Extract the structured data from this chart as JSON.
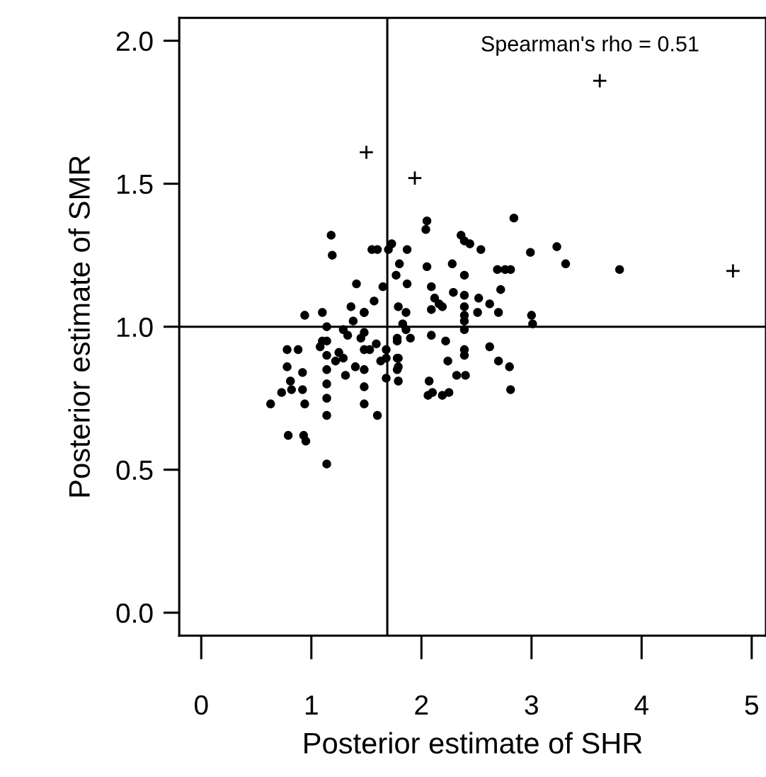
{
  "chart_data": {
    "type": "scatter",
    "xlabel": "Posterior estimate of SHR",
    "ylabel": "Posterior estimate of SMR",
    "xlim": [
      -0.2,
      5.13
    ],
    "ylim": [
      -0.08,
      2.08
    ],
    "xticks": [
      0,
      1,
      2,
      3,
      4,
      5
    ],
    "yticks": [
      {
        "value": 0,
        "label": "0.0"
      },
      {
        "value": 0.5,
        "label": "0.5"
      },
      {
        "value": 1,
        "label": "1.0"
      },
      {
        "value": 1.5,
        "label": "1.5"
      },
      {
        "value": 2,
        "label": "2.0"
      }
    ],
    "grid": false,
    "legend": false,
    "annotations": [
      "Spearman's rho = 0.51"
    ],
    "ref_lines": [
      {
        "axis": "x",
        "value": 1.69,
        "color": "#000000"
      },
      {
        "axis": "y",
        "value": 1.0,
        "color": "#000000"
      }
    ],
    "series": [
      {
        "color": "#000000",
        "marker": "circle",
        "x": [
          1.18,
          1.19,
          1.41,
          0.94,
          1.1,
          1.36,
          0.78,
          0.88,
          0.78,
          0.92,
          0.81,
          0.73,
          0.82,
          0.92,
          0.63,
          0.94,
          0.79,
          0.93,
          0.95,
          1.14,
          1.14,
          1.6,
          1.14,
          1.14,
          1.14,
          1.14,
          1.14,
          1.14,
          1.48,
          1.48,
          1.48,
          1.48,
          1.48,
          1.48,
          1.1,
          1.08,
          1.29,
          1.29,
          1.31,
          1.4,
          1.53,
          1.59,
          1.63,
          1.55,
          1.6,
          1.65,
          1.57,
          1.38,
          1.48,
          1.78,
          1.78,
          1.78,
          2.05,
          2.04,
          2.84,
          2.36,
          2.39,
          2.44,
          2.54,
          1.73,
          1.7,
          1.87,
          2.99,
          3.23,
          3.31,
          1.8,
          2.05,
          2.28,
          2.39,
          2.69,
          2.76,
          2.81,
          1.77,
          1.87,
          2.72,
          2.09,
          2.12,
          2.16,
          2.19,
          2.29,
          2.39,
          2.52,
          2.62,
          2.7,
          2.51,
          2.09,
          2.39,
          2.39,
          2.39,
          2.39,
          3.0,
          3.01,
          1.79,
          1.86,
          1.83,
          1.86,
          1.9,
          1.78,
          2.09,
          2.22,
          2.39,
          2.39,
          2.62,
          2.7,
          2.8,
          2.24,
          2.32,
          2.4,
          2.07,
          2.06,
          2.1,
          2.19,
          2.25,
          2.81,
          1.79,
          1.79,
          1.79,
          1.68,
          1.68,
          1.68,
          3.8,
          1.33,
          1.22,
          1.25,
          1.45
        ],
        "values": [
          1.32,
          1.25,
          1.15,
          1.04,
          1.05,
          1.07,
          0.92,
          0.92,
          0.86,
          0.84,
          0.81,
          0.77,
          0.78,
          0.78,
          0.73,
          0.73,
          0.62,
          0.62,
          0.6,
          0.52,
          0.69,
          0.69,
          1.0,
          0.95,
          0.9,
          0.85,
          0.8,
          0.75,
          1.05,
          0.98,
          0.92,
          0.85,
          0.79,
          0.73,
          0.95,
          0.93,
          0.99,
          0.89,
          0.83,
          0.86,
          0.92,
          0.94,
          0.88,
          1.27,
          1.27,
          1.14,
          1.09,
          1.02,
          1.05,
          0.95,
          0.89,
          0.85,
          1.37,
          1.34,
          1.38,
          1.32,
          1.3,
          1.29,
          1.27,
          1.29,
          1.27,
          1.27,
          1.26,
          1.28,
          1.22,
          1.22,
          1.21,
          1.22,
          1.18,
          1.2,
          1.2,
          1.2,
          1.18,
          1.15,
          1.13,
          1.14,
          1.1,
          1.08,
          1.07,
          1.12,
          1.11,
          1.1,
          1.08,
          1.05,
          1.05,
          1.06,
          1.07,
          1.04,
          1.02,
          0.99,
          1.04,
          1.01,
          1.07,
          1.05,
          1.01,
          0.99,
          0.96,
          0.96,
          0.97,
          0.95,
          0.92,
          0.9,
          0.93,
          0.88,
          0.86,
          0.88,
          0.83,
          0.83,
          0.81,
          0.76,
          0.77,
          0.76,
          0.77,
          0.78,
          0.89,
          0.86,
          0.81,
          0.92,
          0.89,
          0.82,
          1.2,
          0.97,
          0.88,
          0.91,
          0.96
        ]
      },
      {
        "color": "#000000",
        "marker": "cross",
        "x": [
          3.62,
          1.5,
          1.94,
          4.83
        ],
        "values": [
          1.86,
          1.61,
          1.52,
          1.195
        ]
      }
    ]
  }
}
